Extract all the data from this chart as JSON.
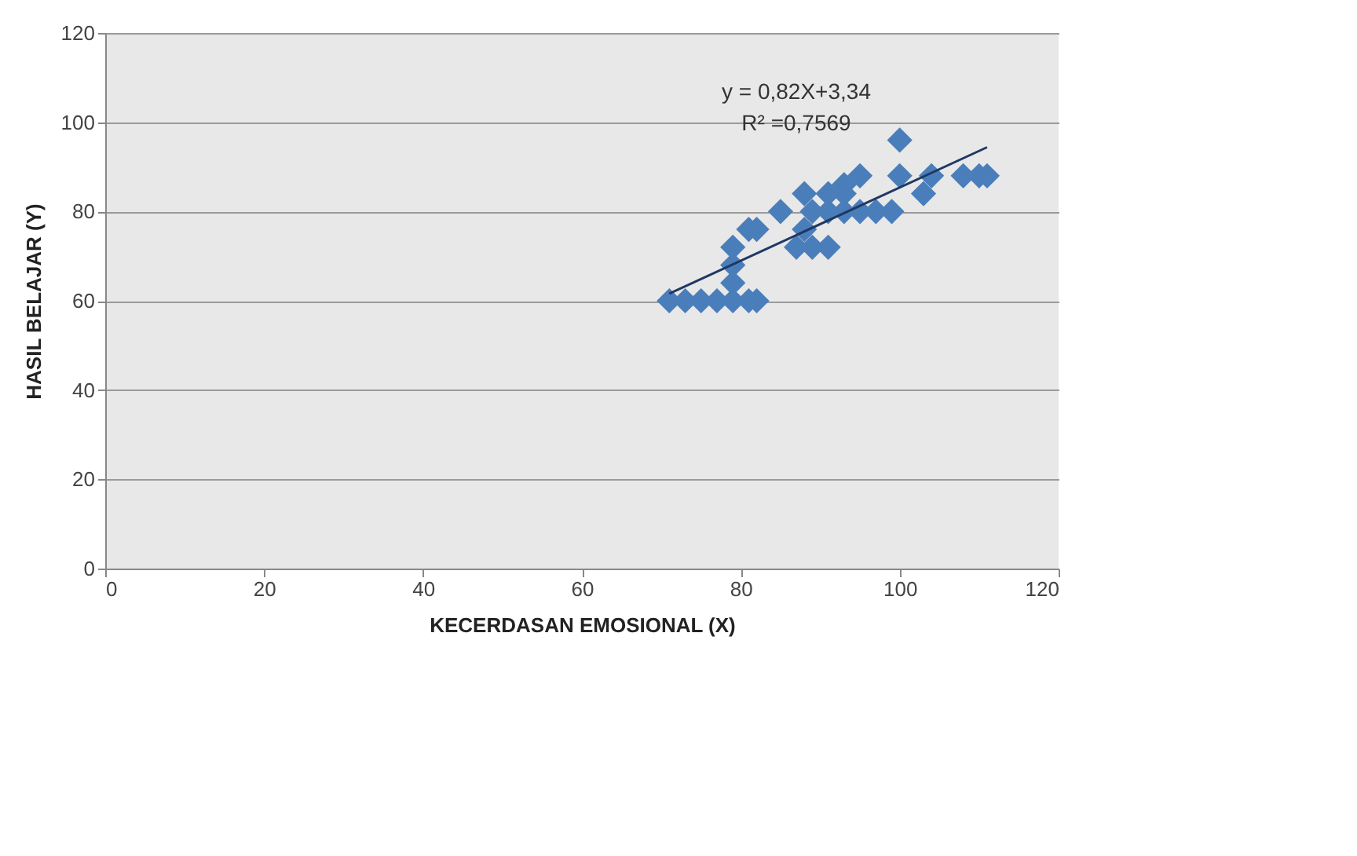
{
  "chart_data": {
    "type": "scatter",
    "xlabel": "KECERDASAN EMOSIONAL (X)",
    "ylabel": "HASIL BELAJAR (Y)",
    "xlim": [
      0,
      120
    ],
    "xticks": [
      0,
      20,
      40,
      60,
      80,
      100,
      120
    ],
    "ylim": [
      0,
      120
    ],
    "yticks": [
      0,
      20,
      40,
      60,
      80,
      100,
      120
    ],
    "grid": "y",
    "annotations": [
      "y = 0,82X+3,34",
      "R² =0,7569"
    ],
    "series": [
      {
        "marker": "diamond",
        "color": "#4a7ebb",
        "x": [
          71,
          73,
          75,
          77,
          79,
          81,
          82,
          79,
          79,
          79,
          81,
          82,
          85,
          88,
          87,
          89,
          91,
          88,
          89,
          91,
          93,
          95,
          97,
          99,
          91,
          93,
          95,
          93,
          100,
          100,
          103,
          104,
          108,
          110,
          111
        ],
        "values": [
          60,
          60,
          60,
          60,
          60,
          60,
          60,
          64,
          68,
          72,
          76,
          76,
          80,
          84,
          72,
          72,
          72,
          76,
          80,
          80,
          80,
          80,
          80,
          80,
          84,
          84,
          88,
          86,
          96,
          88,
          84,
          88,
          88,
          88,
          88
        ]
      },
      {
        "type": "line",
        "color": "#1f3864",
        "x": [
          71,
          111
        ],
        "values": [
          61.6,
          94.4
        ],
        "marker": "none"
      }
    ]
  }
}
